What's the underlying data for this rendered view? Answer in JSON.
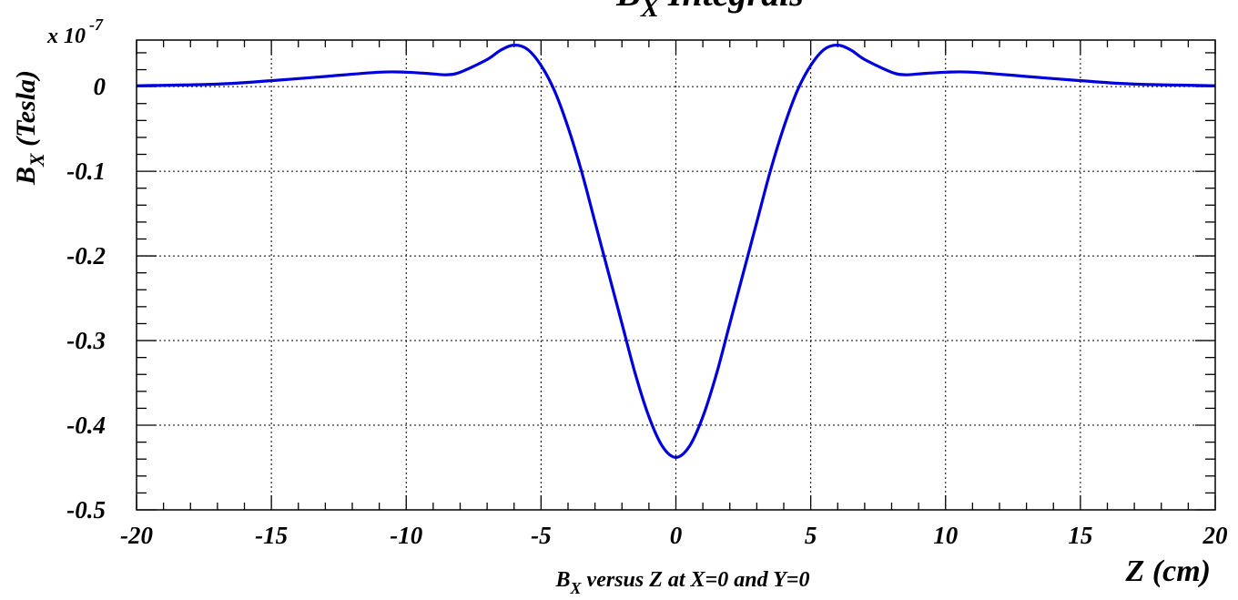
{
  "chart_data": {
    "type": "line",
    "title_main": "B",
    "title_sub": "X",
    "title_rest": " Integrals",
    "ylabel_main": "B",
    "ylabel_sub": "X",
    "ylabel_rest": " (Tesla)",
    "multiplier_base": "x 10",
    "multiplier_exp": "-7",
    "xlabel": "Z (cm)",
    "subtitle_main": "B",
    "subtitle_sub": "X",
    "subtitle_rest": " versus Z at X=0 and Y=0",
    "xlim": [
      -20,
      20
    ],
    "ylim": [
      -0.5,
      0.055
    ],
    "x_ticks": [
      -20,
      -15,
      -10,
      -5,
      0,
      5,
      10,
      15,
      20
    ],
    "x_tick_labels": [
      "-20",
      "-15",
      "-10",
      "-5",
      "0",
      "5",
      "10",
      "15",
      "20"
    ],
    "y_ticks": [
      0,
      -0.1,
      -0.2,
      -0.3,
      -0.4,
      -0.5
    ],
    "y_tick_labels": [
      "0",
      "-0.1",
      "-0.2",
      "-0.3",
      "-0.4",
      "-0.5"
    ],
    "grid": true,
    "line_color": "#0000dd",
    "series": [
      {
        "x": [
          -20,
          -17,
          -15,
          -13,
          -11,
          -10,
          -9,
          -8.5,
          -8,
          -7,
          -6.5,
          -6,
          -5.5,
          -5,
          -4.5,
          -4,
          -3.5,
          -3,
          -2.5,
          -2,
          -1.5,
          -1,
          -0.5,
          0,
          0.5,
          1,
          1.5,
          2,
          2.5,
          3,
          3.5,
          4,
          4.5,
          5,
          5.5,
          6,
          6.5,
          7,
          8,
          8.5,
          9,
          10,
          11,
          13,
          15,
          17,
          20
        ],
        "y": [
          0.001,
          0.003,
          0.007,
          0.012,
          0.017,
          0.017,
          0.015,
          0.014,
          0.017,
          0.032,
          0.043,
          0.049,
          0.044,
          0.025,
          -0.005,
          -0.048,
          -0.1,
          -0.16,
          -0.22,
          -0.28,
          -0.34,
          -0.39,
          -0.425,
          -0.438,
          -0.425,
          -0.39,
          -0.34,
          -0.28,
          -0.22,
          -0.16,
          -0.1,
          -0.048,
          -0.005,
          0.025,
          0.044,
          0.049,
          0.043,
          0.032,
          0.017,
          0.014,
          0.015,
          0.017,
          0.017,
          0.012,
          0.007,
          0.003,
          0.001
        ]
      }
    ]
  }
}
